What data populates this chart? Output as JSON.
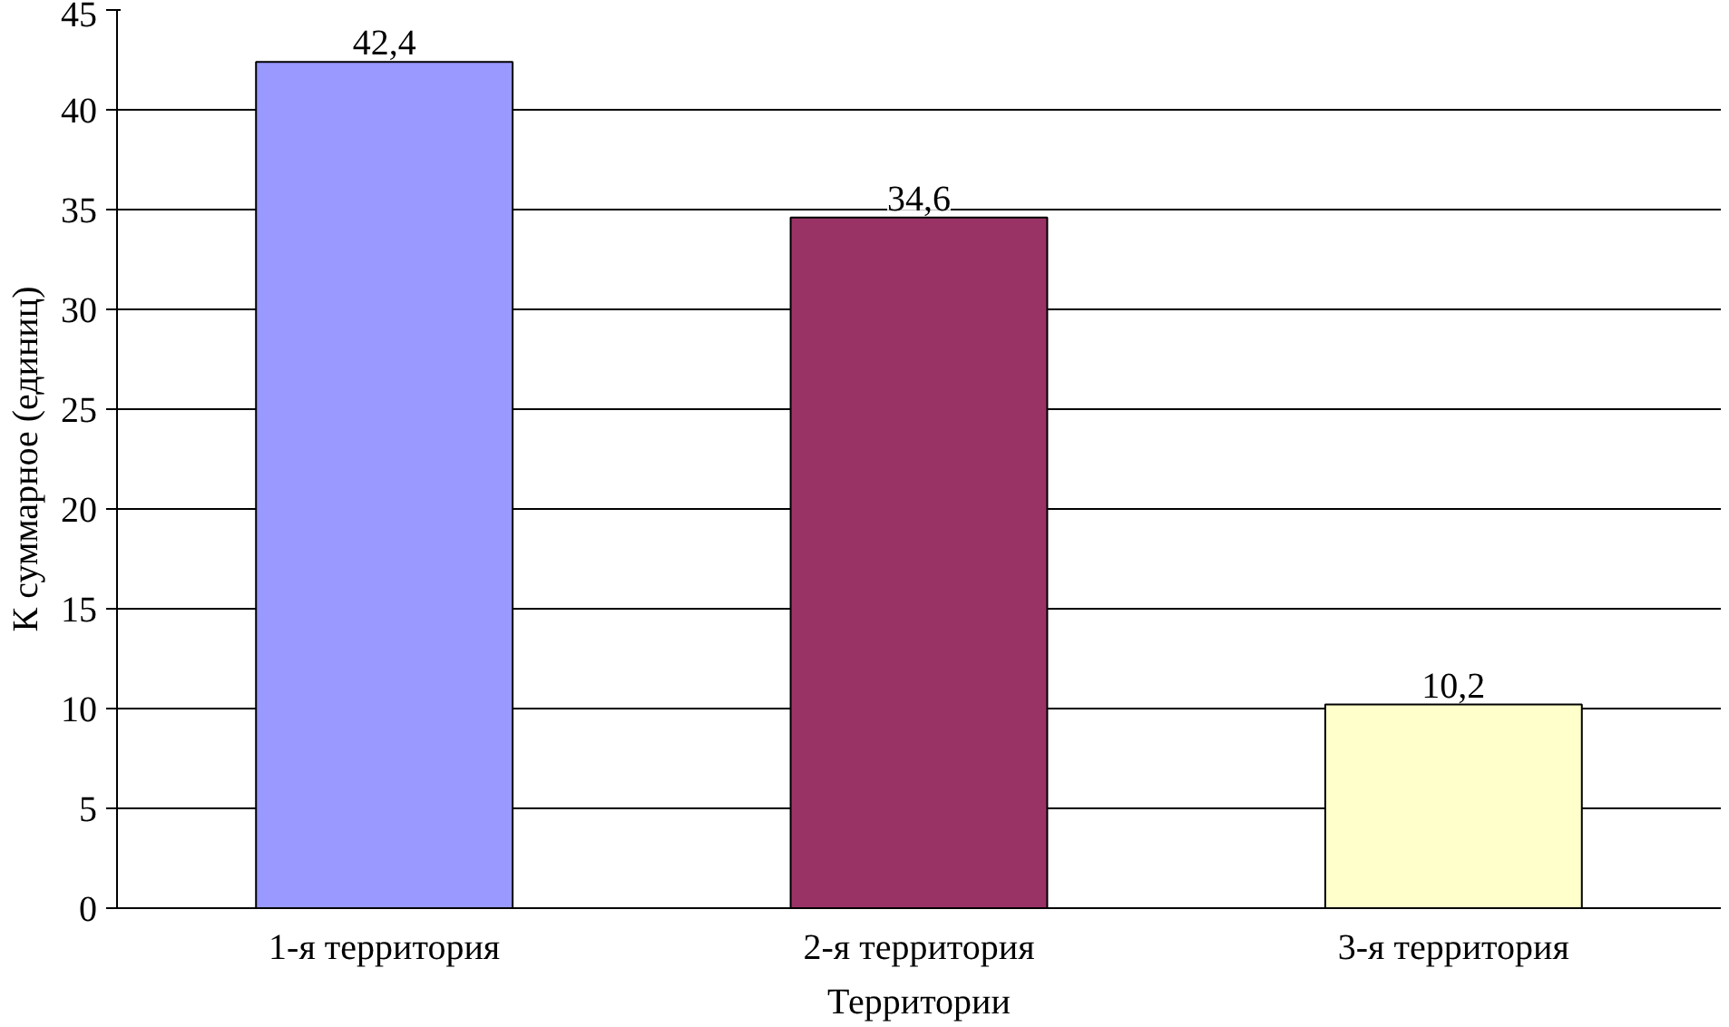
{
  "chart_data": {
    "type": "bar",
    "xlabel": "Территории",
    "ylabel": "К суммарное (единиц)",
    "categories": [
      "1-я территория",
      "2-я территория",
      "3-я территория"
    ],
    "values": [
      42.4,
      34.6,
      10.2
    ],
    "colors": [
      "#9999ff",
      "#993366",
      "#ffffcc"
    ],
    "value_labels": [
      "42,4",
      "34,6",
      "10,2"
    ],
    "ylim": [
      0,
      45
    ],
    "yticks": [
      0,
      5,
      10,
      15,
      20,
      25,
      30,
      35,
      40,
      45
    ],
    "grid": "y"
  }
}
